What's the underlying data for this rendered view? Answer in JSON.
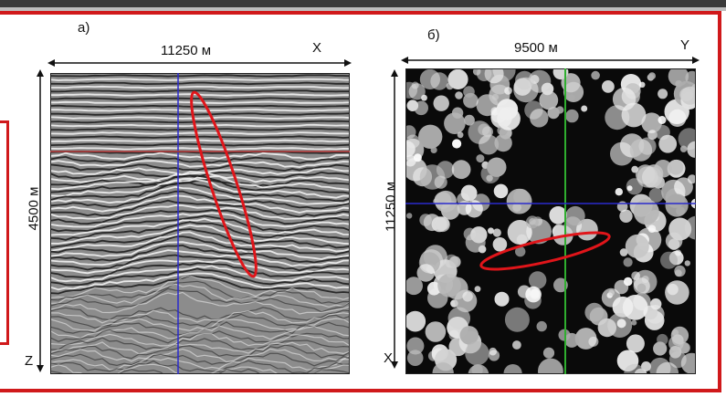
{
  "panel_a": {
    "letter": "а)",
    "width_label": "11250 м",
    "height_label": "4500 м",
    "axis_right": "X",
    "axis_bottom": "Z"
  },
  "panel_b": {
    "letter": "б)",
    "width_label": "9500 м",
    "height_label": "11250 м",
    "axis_right": "Y",
    "axis_bottom": "X"
  },
  "colors": {
    "frame": "#d0191b",
    "ellipse": "#e0151a",
    "line_blue": "#2a2acc",
    "line_green": "#2fae2f",
    "line_red_horizon": "#b03a3a"
  }
}
